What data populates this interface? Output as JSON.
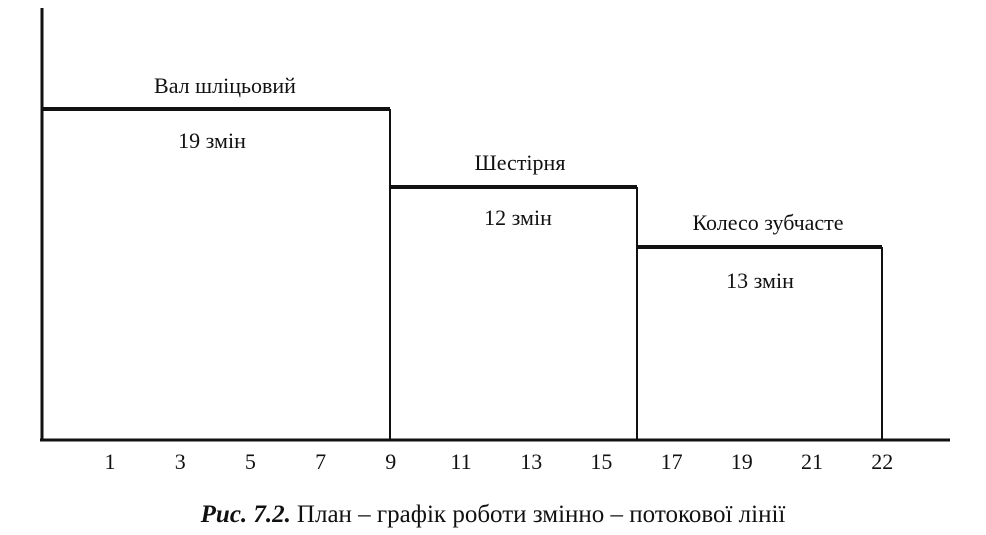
{
  "blocks": [
    {
      "name": "Вал  шліцьовий",
      "label": "19 змін"
    },
    {
      "name": "Шестірня",
      "label": "12 змін"
    },
    {
      "name": "Колесо  зубчасте",
      "label": "13 змін"
    }
  ],
  "x_labels": [
    1,
    3,
    5,
    7,
    9,
    11,
    13,
    15,
    17,
    19,
    21,
    22
  ],
  "caption": {
    "figure": "Рис. 7.2.",
    "text": "План – графік роботи змінно – потокової лінії"
  }
}
